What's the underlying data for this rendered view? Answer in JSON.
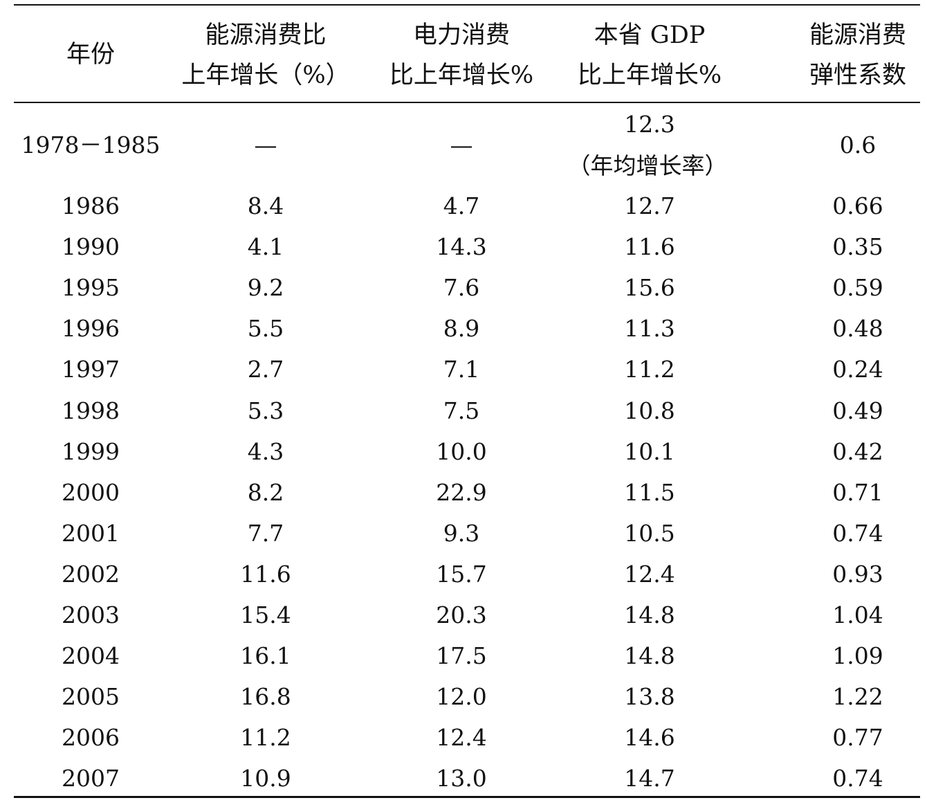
{
  "table": {
    "headers": [
      [
        "年份"
      ],
      [
        "能源消费比",
        "上年增长（%）"
      ],
      [
        "电力消费",
        "比上年增长%"
      ],
      [
        "本省 GDP",
        "比上年增长%"
      ],
      [
        "能源消费",
        "弹性系数"
      ]
    ],
    "first_row": {
      "year": "1978－1985",
      "energy": "—",
      "power": "—",
      "gdp_value": "12.3",
      "gdp_note": "（年均增长率）",
      "elasticity": "0.6"
    },
    "rows": [
      [
        "1986",
        "8.4",
        "4.7",
        "12.7",
        "0.66"
      ],
      [
        "1990",
        "4.1",
        "14.3",
        "11.6",
        "0.35"
      ],
      [
        "1995",
        "9.2",
        "7.6",
        "15.6",
        "0.59"
      ],
      [
        "1996",
        "5.5",
        "8.9",
        "11.3",
        "0.48"
      ],
      [
        "1997",
        "2.7",
        "7.1",
        "11.2",
        "0.24"
      ],
      [
        "1998",
        "5.3",
        "7.5",
        "10.8",
        "0.49"
      ],
      [
        "1999",
        "4.3",
        "10.0",
        "10.1",
        "0.42"
      ],
      [
        "2000",
        "8.2",
        "22.9",
        "11.5",
        "0.71"
      ],
      [
        "2001",
        "7.7",
        "9.3",
        "10.5",
        "0.74"
      ],
      [
        "2002",
        "11.6",
        "15.7",
        "12.4",
        "0.93"
      ],
      [
        "2003",
        "15.4",
        "20.3",
        "14.8",
        "1.04"
      ],
      [
        "2004",
        "16.1",
        "17.5",
        "14.8",
        "1.09"
      ],
      [
        "2005",
        "16.8",
        "12.0",
        "13.8",
        "1.22"
      ],
      [
        "2006",
        "11.2",
        "12.4",
        "14.6",
        "0.77"
      ],
      [
        "2007",
        "10.9",
        "13.0",
        "14.7",
        "0.74"
      ]
    ]
  }
}
